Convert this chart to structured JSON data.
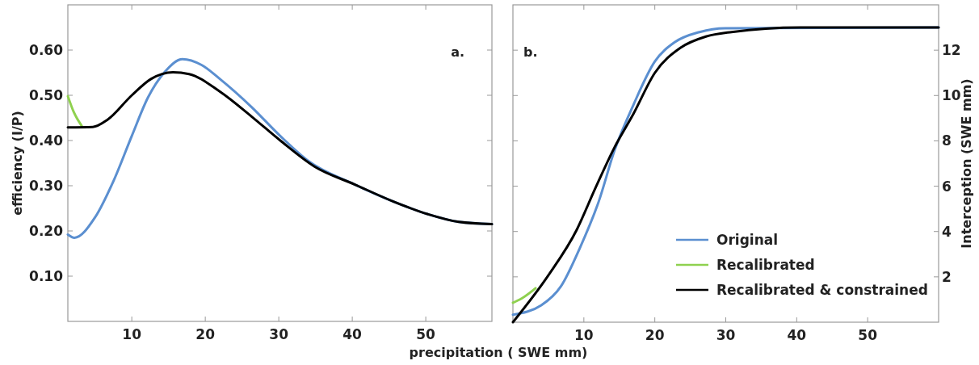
{
  "chart_data": [
    {
      "type": "line",
      "xlabel": "precipitation ( SWE mm)",
      "ylabel": "efficiency (I/P)",
      "xlim": [
        1.3,
        59
      ],
      "xticks": [
        10,
        20,
        30,
        40,
        50
      ],
      "ylim": [
        0,
        0.7
      ],
      "yticks": [
        {
          "value": 0.1,
          "label": "0.10"
        },
        {
          "value": 0.2,
          "label": "0.20"
        },
        {
          "value": 0.3,
          "label": "0.30"
        },
        {
          "value": 0.4,
          "label": "0.40"
        },
        {
          "value": 0.5,
          "label": "0.50"
        },
        {
          "value": 0.6,
          "label": "0.60"
        }
      ],
      "annotations": [
        "a."
      ],
      "legend": false,
      "series": [
        {
          "color": "#5b8fd0",
          "x": [
            1.3,
            2.2,
            5,
            7.5,
            10,
            12.2,
            14.4,
            16.9,
            19.5,
            22,
            26.3,
            30.2,
            34,
            40.3,
            45.6,
            50.3,
            54.5,
            59
          ],
          "values": [
            0.192,
            0.185,
            0.23,
            0.31,
            0.41,
            0.495,
            0.55,
            0.58,
            0.567,
            0.536,
            0.474,
            0.41,
            0.355,
            0.303,
            0.265,
            0.237,
            0.22,
            0.215
          ]
        },
        {
          "color": "#8fd14f",
          "x": [
            1.3,
            2.1,
            3.2
          ],
          "values": [
            0.498,
            0.463,
            0.432
          ]
        },
        {
          "color": "#000000",
          "x": [
            1.3,
            4.7,
            6.7,
            10,
            12.6,
            15.6,
            17.8,
            22,
            26.3,
            30.2,
            34.9,
            40.3,
            45.6,
            50.3,
            54.5,
            59
          ],
          "values": [
            0.429,
            0.43,
            0.446,
            0.5,
            0.536,
            0.551,
            0.547,
            0.508,
            0.453,
            0.4,
            0.342,
            0.303,
            0.265,
            0.237,
            0.22,
            0.215
          ]
        }
      ]
    },
    {
      "type": "line",
      "y2label": "Interception (SWE mm)",
      "xlim": [
        0,
        60
      ],
      "xticks": [
        10,
        20,
        30,
        40,
        50
      ],
      "y2lim": [
        0,
        14
      ],
      "y2ticks": [
        2,
        4,
        6,
        8,
        10,
        12
      ],
      "annotations": [
        "b."
      ],
      "legend": "bottom right",
      "series": [
        {
          "name": "Original",
          "color": "#5b8fd0",
          "axis": "y2",
          "x": [
            0,
            4,
            6.8,
            9.4,
            12.1,
            14.3,
            17,
            20,
            22.8,
            26.3,
            29.9,
            60
          ],
          "values": [
            0.33,
            0.75,
            1.6,
            3.25,
            5.33,
            7.56,
            9.6,
            11.5,
            12.35,
            12.8,
            12.97,
            13
          ]
        },
        {
          "name": "Recalibrated",
          "color": "#8fd14f",
          "axis": "y2",
          "x": [
            0,
            1.3,
            3.2
          ],
          "values": [
            0.86,
            1.06,
            1.5
          ]
        },
        {
          "name": "Recalibrated & constrained",
          "color": "#000000",
          "axis": "y2",
          "x": [
            0,
            5,
            9,
            11.6,
            14.3,
            17,
            20,
            23.6,
            27.2,
            30.8,
            40.5,
            60
          ],
          "values": [
            0,
            2.07,
            4.08,
            5.9,
            7.7,
            9.2,
            11,
            12.1,
            12.6,
            12.8,
            13,
            13
          ]
        }
      ]
    }
  ]
}
